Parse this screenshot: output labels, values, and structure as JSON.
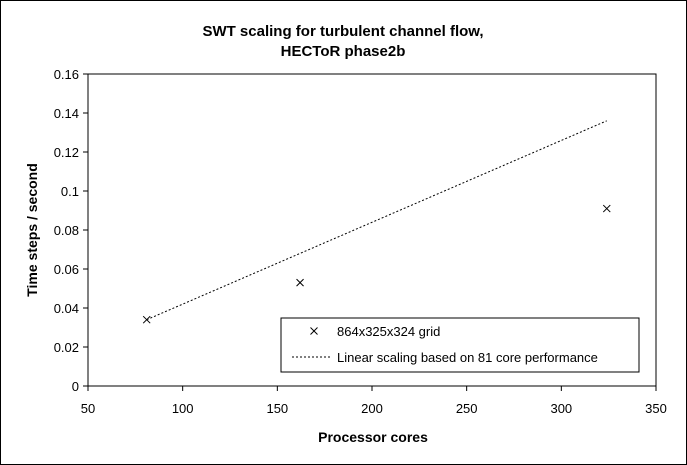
{
  "chart_data": {
    "type": "scatter",
    "title": [
      "SWT scaling for turbulent channel flow,",
      "HECToR phase2b"
    ],
    "xlabel": "Processor cores",
    "ylabel": "Time steps / second",
    "xlim": [
      50,
      350
    ],
    "ylim": [
      0,
      0.16
    ],
    "xticks": [
      "50",
      "100",
      "150",
      "200",
      "250",
      "300",
      "350"
    ],
    "yticks": [
      "0",
      "0.02",
      "0.04",
      "0.06",
      "0.08",
      "0.1",
      "0.12",
      "0.14",
      "0.16"
    ],
    "grid": false,
    "legend_position": "bottom-right",
    "series": [
      {
        "name": "864x325x324 grid",
        "style": "markers-x",
        "color": "#000000",
        "x": [
          81,
          162,
          324
        ],
        "y": [
          0.034,
          0.053,
          0.091
        ]
      },
      {
        "name": "Linear scaling based on 81 core performance",
        "style": "dotted-line",
        "color": "#000000",
        "x": [
          81,
          324
        ],
        "y": [
          0.034,
          0.136
        ]
      }
    ]
  }
}
